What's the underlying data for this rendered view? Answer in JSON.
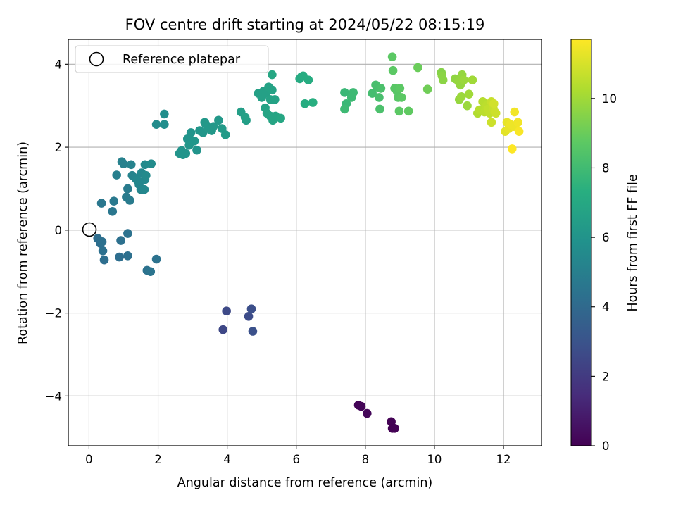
{
  "chart_data": {
    "type": "scatter",
    "title": "FOV centre drift starting at 2024/05/22 08:15:19",
    "xlabel": "Angular distance from reference (arcmin)",
    "ylabel": "Rotation from reference (arcmin)",
    "xlim": [
      -0.6,
      13.1
    ],
    "ylim": [
      -5.2,
      4.6
    ],
    "xticks": [
      0,
      2,
      4,
      6,
      8,
      10,
      12
    ],
    "yticks": [
      -4,
      -2,
      0,
      2,
      4
    ],
    "xtick_labels": [
      "0",
      "2",
      "4",
      "6",
      "8",
      "10",
      "12"
    ],
    "ytick_labels": [
      "−4",
      "−2",
      "0",
      "2",
      "4"
    ],
    "grid": true,
    "legend": {
      "placement": "upper-left",
      "entries": [
        "Reference platepar"
      ]
    },
    "colormap": "viridis",
    "colorbar": {
      "label": "Hours from first FF file",
      "range": [
        0,
        11.7
      ],
      "ticks": [
        0,
        2,
        4,
        6,
        8,
        10
      ],
      "tick_labels": [
        "0",
        "2",
        "4",
        "6",
        "8",
        "10"
      ]
    },
    "reference_point": {
      "x": 0,
      "y": 0
    },
    "points": [
      {
        "x": 7.8,
        "y": -4.22,
        "h": 0.1
      },
      {
        "x": 7.88,
        "y": -4.25,
        "h": 0.15
      },
      {
        "x": 8.05,
        "y": -4.42,
        "h": 0.2
      },
      {
        "x": 8.75,
        "y": -4.62,
        "h": 0.05
      },
      {
        "x": 8.78,
        "y": -4.78,
        "h": 0.0
      },
      {
        "x": 8.85,
        "y": -4.78,
        "h": 0.02
      },
      {
        "x": 3.88,
        "y": -2.4,
        "h": 2.5
      },
      {
        "x": 3.98,
        "y": -1.95,
        "h": 2.6
      },
      {
        "x": 4.62,
        "y": -2.08,
        "h": 2.7
      },
      {
        "x": 4.7,
        "y": -1.9,
        "h": 2.8
      },
      {
        "x": 4.74,
        "y": -2.44,
        "h": 2.9
      },
      {
        "x": 0.25,
        "y": -0.2,
        "h": 4.2
      },
      {
        "x": 0.33,
        "y": -0.32,
        "h": 4.2
      },
      {
        "x": 0.38,
        "y": -0.28,
        "h": 4.3
      },
      {
        "x": 0.4,
        "y": -0.5,
        "h": 4.3
      },
      {
        "x": 0.44,
        "y": -0.72,
        "h": 4.2
      },
      {
        "x": 0.92,
        "y": -0.25,
        "h": 4.3
      },
      {
        "x": 0.88,
        "y": -0.65,
        "h": 4.2
      },
      {
        "x": 1.12,
        "y": -0.62,
        "h": 4.3
      },
      {
        "x": 1.12,
        "y": -0.08,
        "h": 4.4
      },
      {
        "x": 1.68,
        "y": -0.97,
        "h": 4.4
      },
      {
        "x": 1.78,
        "y": -1.0,
        "h": 4.5
      },
      {
        "x": 1.95,
        "y": -0.7,
        "h": 4.4
      },
      {
        "x": 0.36,
        "y": 0.65,
        "h": 4.6
      },
      {
        "x": 0.68,
        "y": 0.45,
        "h": 4.6
      },
      {
        "x": 0.72,
        "y": 0.7,
        "h": 4.7
      },
      {
        "x": 1.08,
        "y": 0.8,
        "h": 4.8
      },
      {
        "x": 1.12,
        "y": 1.0,
        "h": 4.8
      },
      {
        "x": 1.18,
        "y": 0.72,
        "h": 4.8
      },
      {
        "x": 0.8,
        "y": 1.33,
        "h": 5.0
      },
      {
        "x": 0.95,
        "y": 1.65,
        "h": 5.1
      },
      {
        "x": 1.0,
        "y": 1.6,
        "h": 5.1
      },
      {
        "x": 1.22,
        "y": 1.58,
        "h": 5.2
      },
      {
        "x": 1.25,
        "y": 1.32,
        "h": 5.2
      },
      {
        "x": 1.35,
        "y": 1.25,
        "h": 5.3
      },
      {
        "x": 1.45,
        "y": 1.1,
        "h": 5.3
      },
      {
        "x": 1.5,
        "y": 0.98,
        "h": 5.3
      },
      {
        "x": 1.52,
        "y": 1.38,
        "h": 5.4
      },
      {
        "x": 1.62,
        "y": 1.22,
        "h": 5.4
      },
      {
        "x": 1.6,
        "y": 0.98,
        "h": 5.4
      },
      {
        "x": 1.65,
        "y": 1.32,
        "h": 5.5
      },
      {
        "x": 1.62,
        "y": 1.58,
        "h": 5.5
      },
      {
        "x": 1.8,
        "y": 1.6,
        "h": 5.6
      },
      {
        "x": 1.4,
        "y": 1.2,
        "h": 5.4
      },
      {
        "x": 1.95,
        "y": 2.55,
        "h": 5.6
      },
      {
        "x": 2.18,
        "y": 2.55,
        "h": 5.7
      },
      {
        "x": 2.18,
        "y": 2.8,
        "h": 5.7
      },
      {
        "x": 2.62,
        "y": 1.85,
        "h": 6.0
      },
      {
        "x": 2.68,
        "y": 1.92,
        "h": 6.0
      },
      {
        "x": 2.72,
        "y": 1.82,
        "h": 6.0
      },
      {
        "x": 2.8,
        "y": 1.85,
        "h": 6.0
      },
      {
        "x": 2.85,
        "y": 2.2,
        "h": 6.0
      },
      {
        "x": 2.9,
        "y": 2.05,
        "h": 6.1
      },
      {
        "x": 2.95,
        "y": 2.35,
        "h": 6.0
      },
      {
        "x": 3.05,
        "y": 2.15,
        "h": 6.1
      },
      {
        "x": 3.12,
        "y": 1.93,
        "h": 6.0
      },
      {
        "x": 3.2,
        "y": 2.4,
        "h": 6.1
      },
      {
        "x": 3.3,
        "y": 2.35,
        "h": 6.1
      },
      {
        "x": 3.38,
        "y": 2.55,
        "h": 6.1
      },
      {
        "x": 3.45,
        "y": 2.45,
        "h": 6.2
      },
      {
        "x": 3.55,
        "y": 2.4,
        "h": 6.2
      },
      {
        "x": 3.6,
        "y": 2.5,
        "h": 6.2
      },
      {
        "x": 3.75,
        "y": 2.65,
        "h": 6.2
      },
      {
        "x": 3.35,
        "y": 2.6,
        "h": 6.2
      },
      {
        "x": 3.85,
        "y": 2.45,
        "h": 6.3
      },
      {
        "x": 3.95,
        "y": 2.3,
        "h": 6.3
      },
      {
        "x": 4.4,
        "y": 2.85,
        "h": 6.5
      },
      {
        "x": 4.55,
        "y": 2.65,
        "h": 6.5
      },
      {
        "x": 4.52,
        "y": 2.72,
        "h": 6.6
      },
      {
        "x": 4.9,
        "y": 3.3,
        "h": 6.6
      },
      {
        "x": 5.0,
        "y": 3.2,
        "h": 6.6
      },
      {
        "x": 5.05,
        "y": 3.35,
        "h": 6.6
      },
      {
        "x": 5.12,
        "y": 3.3,
        "h": 6.6
      },
      {
        "x": 5.2,
        "y": 3.45,
        "h": 6.7
      },
      {
        "x": 5.25,
        "y": 3.15,
        "h": 6.7
      },
      {
        "x": 5.3,
        "y": 3.38,
        "h": 6.7
      },
      {
        "x": 5.38,
        "y": 3.15,
        "h": 6.7
      },
      {
        "x": 5.1,
        "y": 2.95,
        "h": 6.7
      },
      {
        "x": 5.15,
        "y": 2.82,
        "h": 6.8
      },
      {
        "x": 5.25,
        "y": 2.75,
        "h": 6.8
      },
      {
        "x": 5.32,
        "y": 2.65,
        "h": 6.8
      },
      {
        "x": 5.4,
        "y": 2.75,
        "h": 6.8
      },
      {
        "x": 5.55,
        "y": 2.7,
        "h": 6.9
      },
      {
        "x": 5.3,
        "y": 3.75,
        "h": 6.9
      },
      {
        "x": 6.1,
        "y": 3.65,
        "h": 7.1
      },
      {
        "x": 6.15,
        "y": 3.7,
        "h": 7.1
      },
      {
        "x": 6.2,
        "y": 3.72,
        "h": 7.2
      },
      {
        "x": 6.35,
        "y": 3.62,
        "h": 7.2
      },
      {
        "x": 6.25,
        "y": 3.05,
        "h": 7.2
      },
      {
        "x": 6.48,
        "y": 3.08,
        "h": 7.3
      },
      {
        "x": 7.4,
        "y": 3.32,
        "h": 7.8
      },
      {
        "x": 7.45,
        "y": 3.05,
        "h": 7.8
      },
      {
        "x": 7.4,
        "y": 2.92,
        "h": 7.9
      },
      {
        "x": 7.6,
        "y": 3.2,
        "h": 7.9
      },
      {
        "x": 7.65,
        "y": 3.32,
        "h": 7.9
      },
      {
        "x": 8.2,
        "y": 3.3,
        "h": 8.1
      },
      {
        "x": 8.3,
        "y": 3.5,
        "h": 8.2
      },
      {
        "x": 8.35,
        "y": 3.45,
        "h": 8.2
      },
      {
        "x": 8.4,
        "y": 3.2,
        "h": 8.2
      },
      {
        "x": 8.42,
        "y": 2.92,
        "h": 8.3
      },
      {
        "x": 8.45,
        "y": 3.42,
        "h": 8.3
      },
      {
        "x": 8.78,
        "y": 4.18,
        "h": 8.7
      },
      {
        "x": 8.8,
        "y": 3.85,
        "h": 8.7
      },
      {
        "x": 8.85,
        "y": 3.42,
        "h": 8.6
      },
      {
        "x": 8.92,
        "y": 3.35,
        "h": 8.6
      },
      {
        "x": 8.95,
        "y": 3.2,
        "h": 8.6
      },
      {
        "x": 9.0,
        "y": 3.42,
        "h": 8.7
      },
      {
        "x": 9.05,
        "y": 3.2,
        "h": 8.7
      },
      {
        "x": 8.98,
        "y": 2.87,
        "h": 8.7
      },
      {
        "x": 9.25,
        "y": 2.87,
        "h": 8.8
      },
      {
        "x": 9.52,
        "y": 3.92,
        "h": 9.0
      },
      {
        "x": 9.8,
        "y": 3.4,
        "h": 9.1
      },
      {
        "x": 10.2,
        "y": 3.8,
        "h": 9.5
      },
      {
        "x": 10.22,
        "y": 3.72,
        "h": 9.6
      },
      {
        "x": 10.25,
        "y": 3.62,
        "h": 9.6
      },
      {
        "x": 10.6,
        "y": 3.65,
        "h": 9.7
      },
      {
        "x": 10.7,
        "y": 3.58,
        "h": 9.8
      },
      {
        "x": 10.75,
        "y": 3.5,
        "h": 9.8
      },
      {
        "x": 10.8,
        "y": 3.75,
        "h": 9.8
      },
      {
        "x": 10.85,
        "y": 3.62,
        "h": 9.9
      },
      {
        "x": 10.72,
        "y": 3.15,
        "h": 9.8
      },
      {
        "x": 10.78,
        "y": 3.22,
        "h": 9.9
      },
      {
        "x": 10.95,
        "y": 3.0,
        "h": 9.9
      },
      {
        "x": 11.0,
        "y": 3.28,
        "h": 10.0
      },
      {
        "x": 11.1,
        "y": 3.62,
        "h": 10.0
      },
      {
        "x": 11.25,
        "y": 2.82,
        "h": 10.3
      },
      {
        "x": 11.3,
        "y": 2.9,
        "h": 10.4
      },
      {
        "x": 11.4,
        "y": 3.1,
        "h": 10.4
      },
      {
        "x": 11.45,
        "y": 2.85,
        "h": 10.5
      },
      {
        "x": 11.5,
        "y": 3.0,
        "h": 10.5
      },
      {
        "x": 11.55,
        "y": 2.92,
        "h": 10.6
      },
      {
        "x": 11.6,
        "y": 2.82,
        "h": 10.6
      },
      {
        "x": 11.65,
        "y": 3.1,
        "h": 10.7
      },
      {
        "x": 11.7,
        "y": 2.95,
        "h": 10.7
      },
      {
        "x": 11.75,
        "y": 2.85,
        "h": 10.8
      },
      {
        "x": 11.78,
        "y": 2.82,
        "h": 10.8
      },
      {
        "x": 11.65,
        "y": 2.6,
        "h": 10.8
      },
      {
        "x": 11.72,
        "y": 3.05,
        "h": 10.9
      },
      {
        "x": 12.05,
        "y": 2.38,
        "h": 11.2
      },
      {
        "x": 12.1,
        "y": 2.6,
        "h": 11.3
      },
      {
        "x": 12.15,
        "y": 2.45,
        "h": 11.3
      },
      {
        "x": 12.2,
        "y": 2.55,
        "h": 11.4
      },
      {
        "x": 12.3,
        "y": 2.5,
        "h": 11.4
      },
      {
        "x": 12.32,
        "y": 2.85,
        "h": 11.5
      },
      {
        "x": 12.42,
        "y": 2.6,
        "h": 11.5
      },
      {
        "x": 12.45,
        "y": 2.38,
        "h": 11.6
      },
      {
        "x": 12.25,
        "y": 1.96,
        "h": 11.7
      }
    ]
  }
}
